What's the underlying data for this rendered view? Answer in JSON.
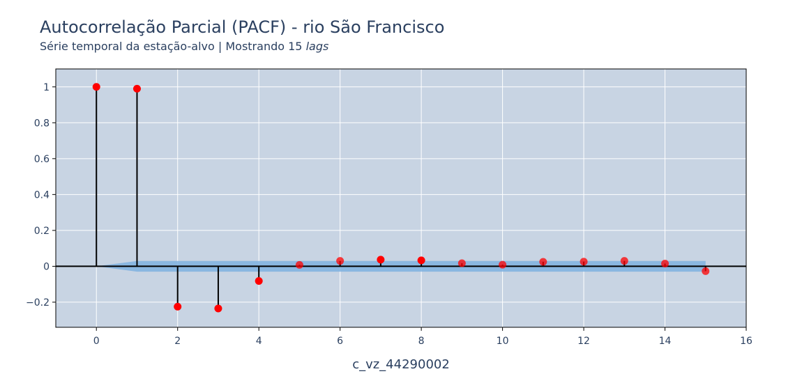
{
  "chart_data": {
    "type": "scatter",
    "title": "Autocorrelação Parcial (PACF) - rio São Francisco",
    "subtitle_text": "Série temporal da estação-alvo | Mostrando 15",
    "subtitle_emphasis": "lags",
    "xlabel": "c_vz_44290002",
    "ylabel": "",
    "xlim": [
      -1,
      16
    ],
    "ylim": [
      -0.34,
      1.1
    ],
    "x_ticks": [
      0,
      2,
      4,
      6,
      8,
      10,
      12,
      14,
      16
    ],
    "x_tick_labels": [
      "0",
      "2",
      "4",
      "6",
      "8",
      "10",
      "12",
      "14",
      "16"
    ],
    "y_ticks": [
      -0.2,
      0,
      0.2,
      0.4,
      0.6,
      0.8,
      1
    ],
    "y_tick_labels": [
      "−0.2",
      "0",
      "0.2",
      "0.4",
      "0.6",
      "0.8",
      "1"
    ],
    "grid": true,
    "lags": [
      0,
      1,
      2,
      3,
      4,
      5,
      6,
      7,
      8,
      9,
      10,
      11,
      12,
      13,
      14,
      15
    ],
    "values": [
      1.0,
      0.99,
      -0.225,
      -0.235,
      -0.082,
      0.008,
      0.03,
      0.037,
      0.033,
      0.017,
      0.009,
      0.025,
      0.026,
      0.03,
      0.015,
      -0.027
    ],
    "confidence_upper": [
      0.0,
      0.03,
      0.03,
      0.03,
      0.03,
      0.03,
      0.03,
      0.03,
      0.03,
      0.03,
      0.03,
      0.03,
      0.03,
      0.03,
      0.03,
      0.03
    ],
    "confidence_lower": [
      0.0,
      -0.03,
      -0.03,
      -0.03,
      -0.03,
      -0.03,
      -0.03,
      -0.03,
      -0.03,
      -0.03,
      -0.03,
      -0.03,
      -0.03,
      -0.03,
      -0.03,
      -0.03
    ],
    "colors": {
      "plot_background": "#c8d4e3",
      "grid": "#ffffff",
      "marker": "#ff0000",
      "stem": "#000000",
      "confidence_band": "#7fb2e0",
      "text": "#2a3f5f"
    }
  }
}
